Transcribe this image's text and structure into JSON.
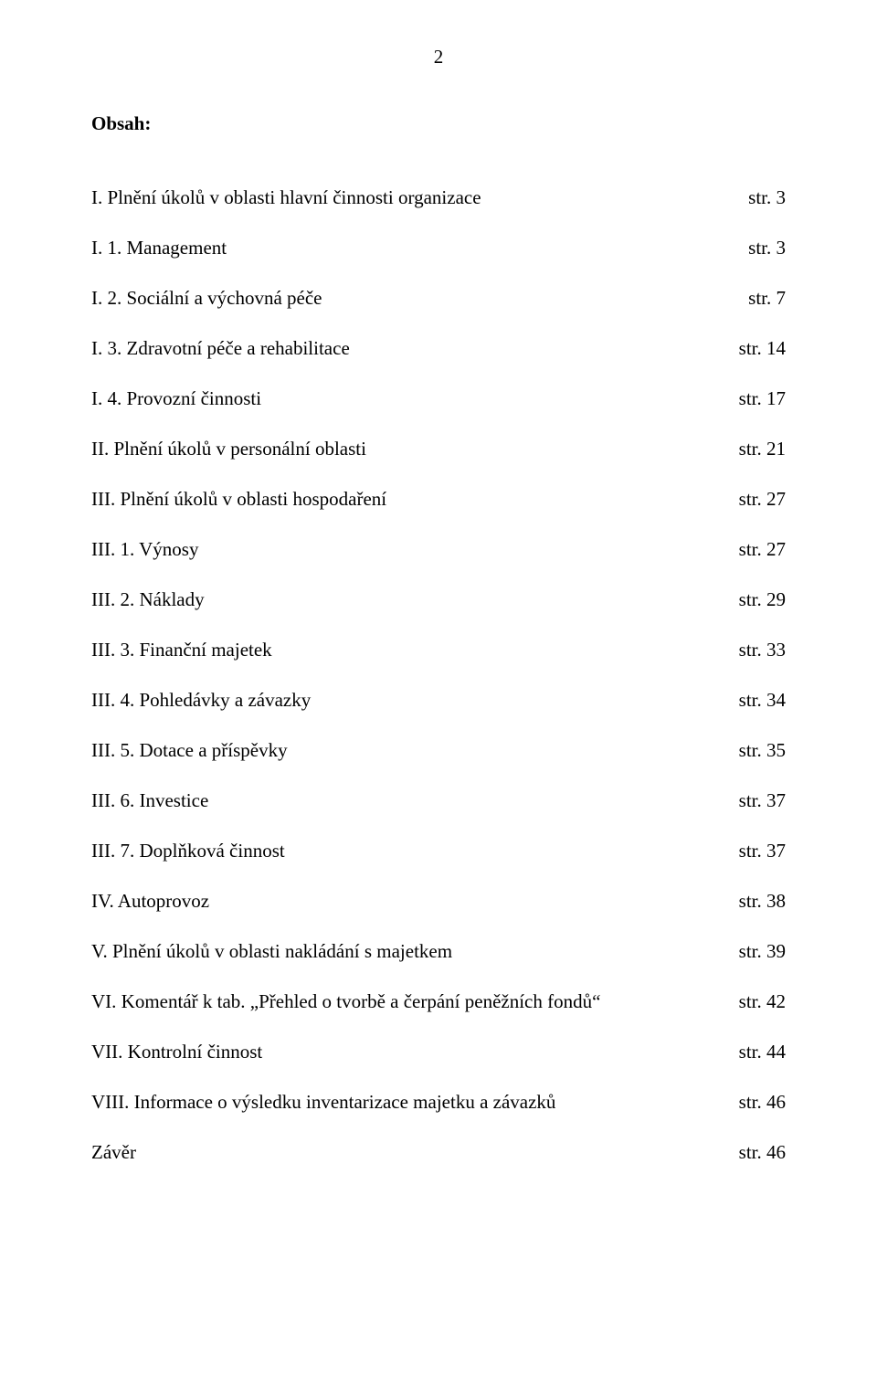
{
  "page_number": "2",
  "heading": "Obsah:",
  "toc": [
    {
      "title": "I. Plnění úkolů v oblasti hlavní činnosti organizace",
      "page": "str. 3"
    },
    {
      "title": "I. 1. Management",
      "page": "str. 3"
    },
    {
      "title": "I. 2. Sociální a výchovná péče",
      "page": "str. 7"
    },
    {
      "title": "I. 3. Zdravotní péče a rehabilitace",
      "page": "str. 14"
    },
    {
      "title": "I. 4. Provozní činnosti",
      "page": "str. 17"
    },
    {
      "title": "II. Plnění úkolů v personální oblasti",
      "page": "str. 21"
    },
    {
      "title": "III. Plnění úkolů v oblasti hospodaření",
      "page": "str. 27"
    },
    {
      "title": "III. 1. Výnosy",
      "page": "str. 27"
    },
    {
      "title": "III. 2. Náklady",
      "page": "str. 29"
    },
    {
      "title": "III. 3. Finanční majetek",
      "page": "str. 33"
    },
    {
      "title": "III. 4. Pohledávky a závazky",
      "page": "str. 34"
    },
    {
      "title": "III. 5. Dotace a příspěvky",
      "page": "str. 35"
    },
    {
      "title": "III. 6. Investice",
      "page": "str. 37"
    },
    {
      "title": "III. 7. Doplňková činnost",
      "page": "str. 37"
    },
    {
      "title": "IV. Autoprovoz",
      "page": "str. 38"
    },
    {
      "title": "V. Plnění úkolů v oblasti nakládání s majetkem",
      "page": "str. 39"
    },
    {
      "title": "VI. Komentář k tab. „Přehled o tvorbě a čerpání peněžních fondů“",
      "page": "str. 42"
    },
    {
      "title": "VII. Kontrolní činnost",
      "page": "str. 44"
    },
    {
      "title": "VIII. Informace o výsledku inventarizace majetku a závazků",
      "page": "str. 46"
    },
    {
      "title": "Závěr",
      "page": "str. 46"
    }
  ]
}
